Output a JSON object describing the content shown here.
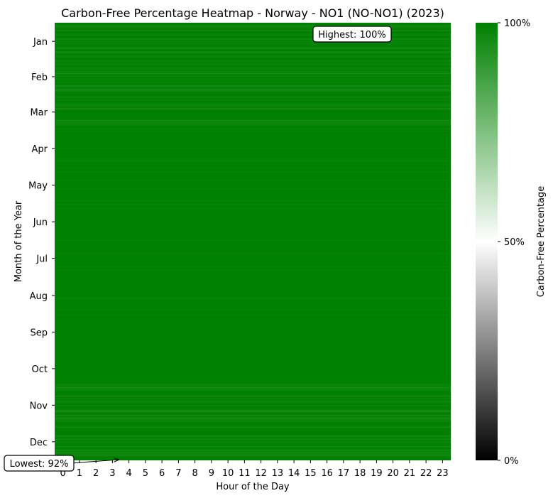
{
  "chart_data": {
    "type": "heatmap",
    "title": "Carbon-Free Percentage Heatmap - Norway - NO1 (NO-NO1) (2023)",
    "xlabel": "Hour of the Day",
    "ylabel": "Month of the Year",
    "x_categories": [
      "0",
      "1",
      "2",
      "3",
      "4",
      "5",
      "6",
      "7",
      "8",
      "9",
      "10",
      "11",
      "12",
      "13",
      "14",
      "15",
      "16",
      "17",
      "18",
      "19",
      "20",
      "21",
      "22",
      "23"
    ],
    "y_categories": [
      "Jan",
      "Feb",
      "Mar",
      "Apr",
      "May",
      "Jun",
      "Jul",
      "Aug",
      "Sep",
      "Oct",
      "Nov",
      "Dec"
    ],
    "value_range": [
      0,
      100
    ],
    "colorbar": {
      "label": "Carbon-Free Percentage",
      "ticks": [
        "0%",
        "50%",
        "100%"
      ],
      "colors": [
        "#000000",
        "#ffffff",
        "#008000"
      ]
    },
    "annotations": {
      "highest": "Highest: 100%",
      "lowest": "Lowest: 92%"
    },
    "grid": false
  }
}
